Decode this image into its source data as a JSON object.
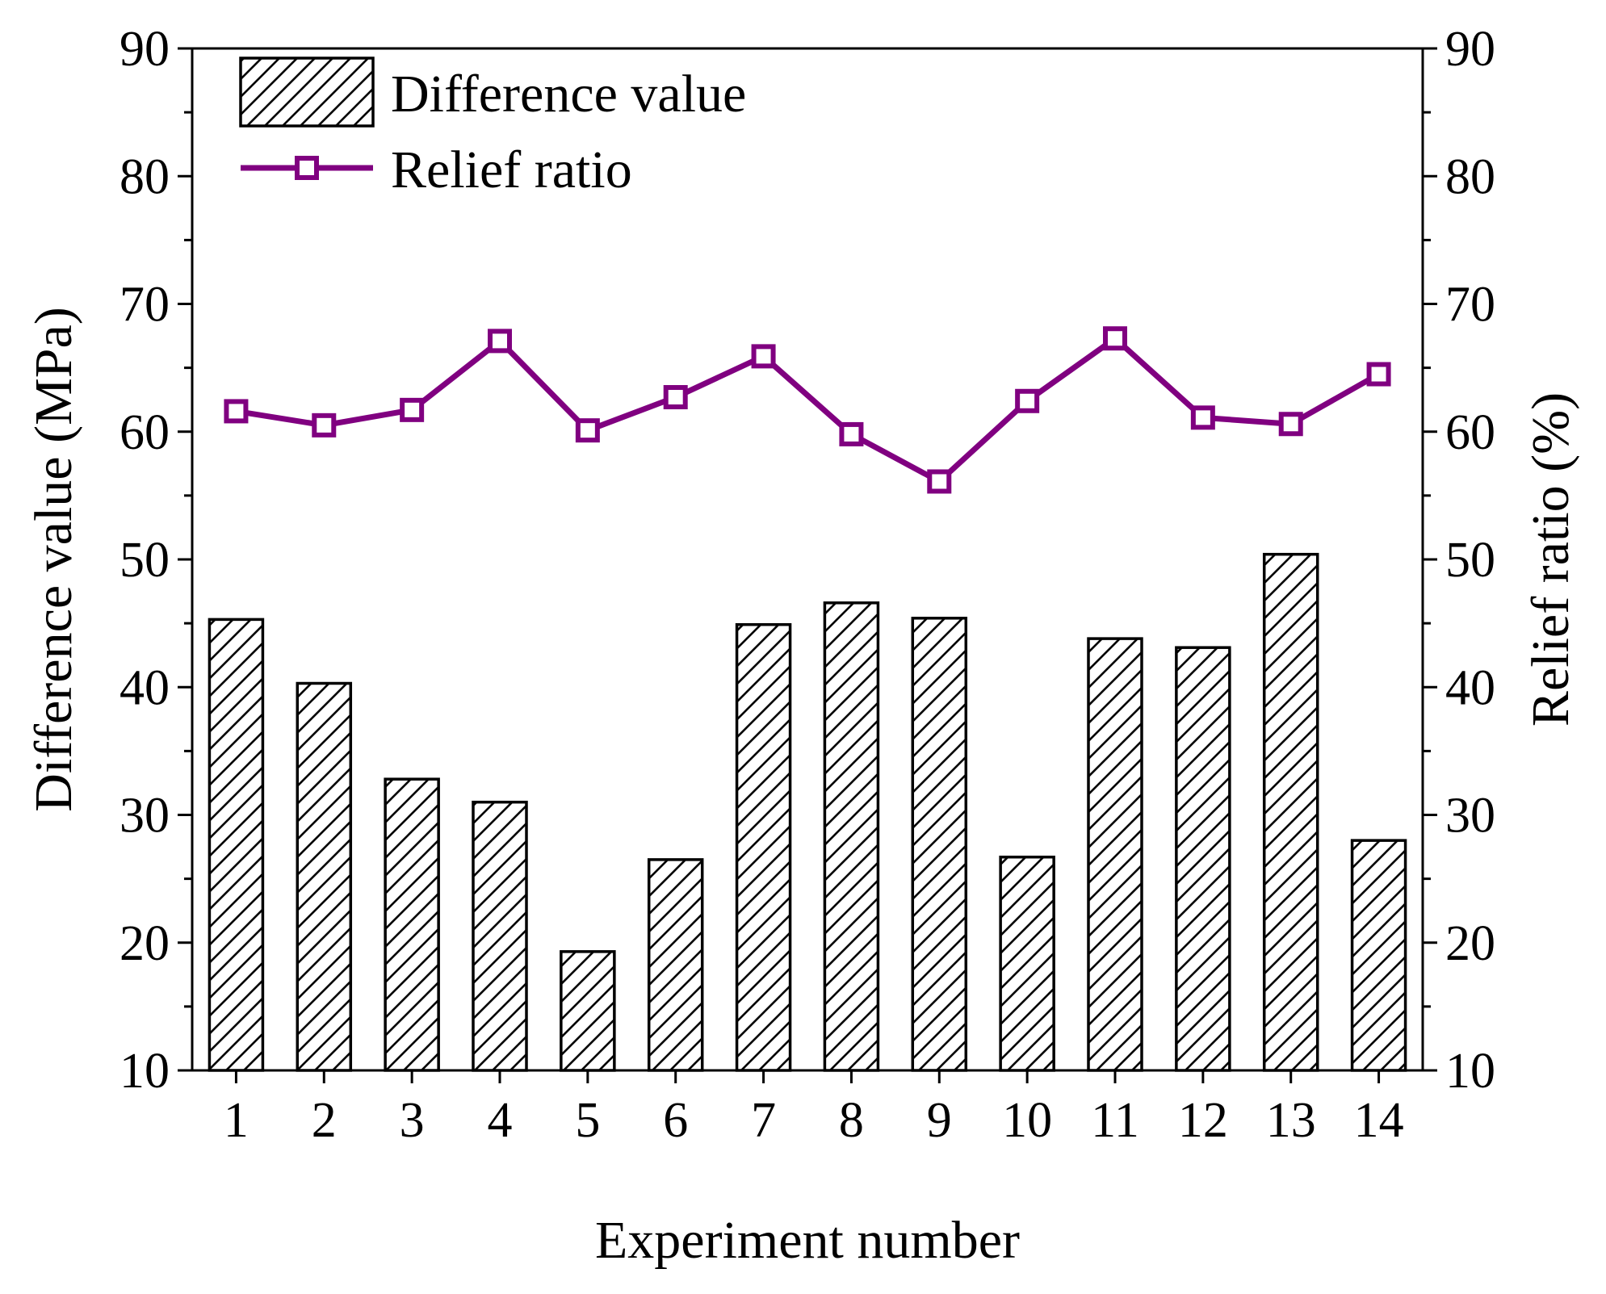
{
  "chart_data": {
    "type": "bar+line",
    "categories": [
      "1",
      "2",
      "3",
      "4",
      "5",
      "6",
      "7",
      "8",
      "9",
      "10",
      "11",
      "12",
      "13",
      "14"
    ],
    "series": [
      {
        "name": "Difference value",
        "kind": "bar",
        "axis": "left",
        "pattern": "diagonal-hatch",
        "values": [
          45.3,
          40.3,
          32.8,
          31.0,
          19.3,
          26.5,
          44.9,
          46.6,
          45.4,
          26.7,
          43.8,
          43.1,
          50.4,
          28.0
        ]
      },
      {
        "name": "Relief ratio",
        "kind": "line",
        "marker": "square",
        "axis": "right",
        "values": [
          61.6,
          60.5,
          61.7,
          67.1,
          60.1,
          62.7,
          65.9,
          59.8,
          56.1,
          62.4,
          67.3,
          61.1,
          60.6,
          64.5
        ]
      }
    ],
    "title": "",
    "xlabel": "Experiment number",
    "ylabel_left": "Difference value (MPa)",
    "ylabel_right": "Relief ratio (%)",
    "ylim_left": [
      10,
      90
    ],
    "ylim_right": [
      10,
      90
    ],
    "yticks": [
      10,
      20,
      30,
      40,
      50,
      60,
      70,
      80,
      90
    ],
    "legend_position": "top-left",
    "grid": false,
    "colors": {
      "bar_stroke": "#000000",
      "line": "#800080",
      "axis": "#000000"
    }
  }
}
